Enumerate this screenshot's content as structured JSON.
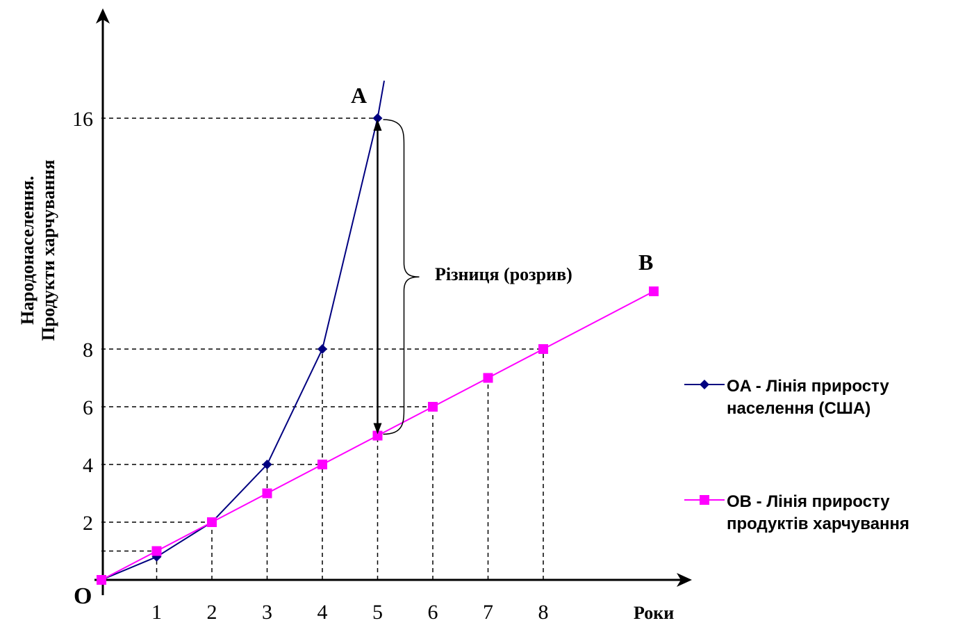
{
  "chart_data": {
    "type": "line",
    "ylabel_line1": "Народонаселення.",
    "ylabel_line2": "Продукти харчування",
    "xlabel": "Роки",
    "origin_label": "O",
    "x_ticks": [
      "1",
      "2",
      "3",
      "4",
      "5",
      "6",
      "7",
      "8"
    ],
    "y_ticks": [
      "2",
      "4",
      "6",
      "8",
      "16"
    ],
    "series": [
      {
        "name_line1": "OA - Лінія приросту",
        "name_line2": "населення (США)",
        "end_label": "A",
        "color": "#000080",
        "marker": "diamond",
        "x": [
          0,
          1,
          2,
          3,
          4,
          5
        ],
        "y": [
          0,
          0.8,
          2,
          4,
          8,
          16
        ],
        "extend_to": {
          "x": 5.12,
          "y": 17.3
        }
      },
      {
        "name_line1": "OB - Лінія приросту",
        "name_line2": "продуктів харчування",
        "end_label": "B",
        "color": "#ff00ff",
        "marker": "square",
        "x": [
          0,
          1,
          2,
          3,
          4,
          5,
          6,
          7,
          8,
          10
        ],
        "y": [
          0,
          1,
          2,
          3,
          4,
          5,
          6,
          7,
          8,
          10
        ]
      }
    ],
    "annotation": "Різниця (розрив)",
    "gap_year": 5,
    "xlim": [
      0,
      10
    ],
    "ylim": [
      0,
      16
    ],
    "grid": false,
    "legend_position": "right"
  }
}
